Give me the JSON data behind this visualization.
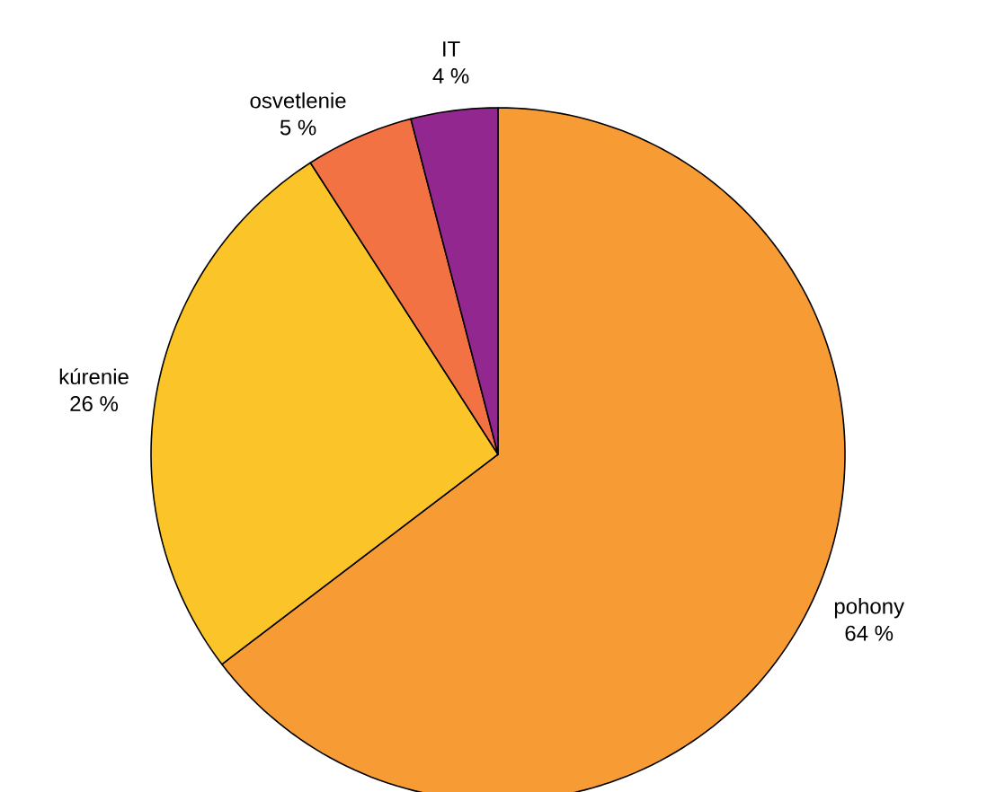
{
  "chart_data": {
    "type": "pie",
    "categories": [
      "pohony",
      "kúrenie",
      "osvetlenie",
      "IT"
    ],
    "values": [
      64,
      26,
      5,
      4
    ],
    "value_labels": [
      "64 %",
      "26 %",
      "5 %",
      "4 %"
    ],
    "colors": [
      "#f79b34",
      "#fbc52a",
      "#f37243",
      "#92278f"
    ]
  }
}
